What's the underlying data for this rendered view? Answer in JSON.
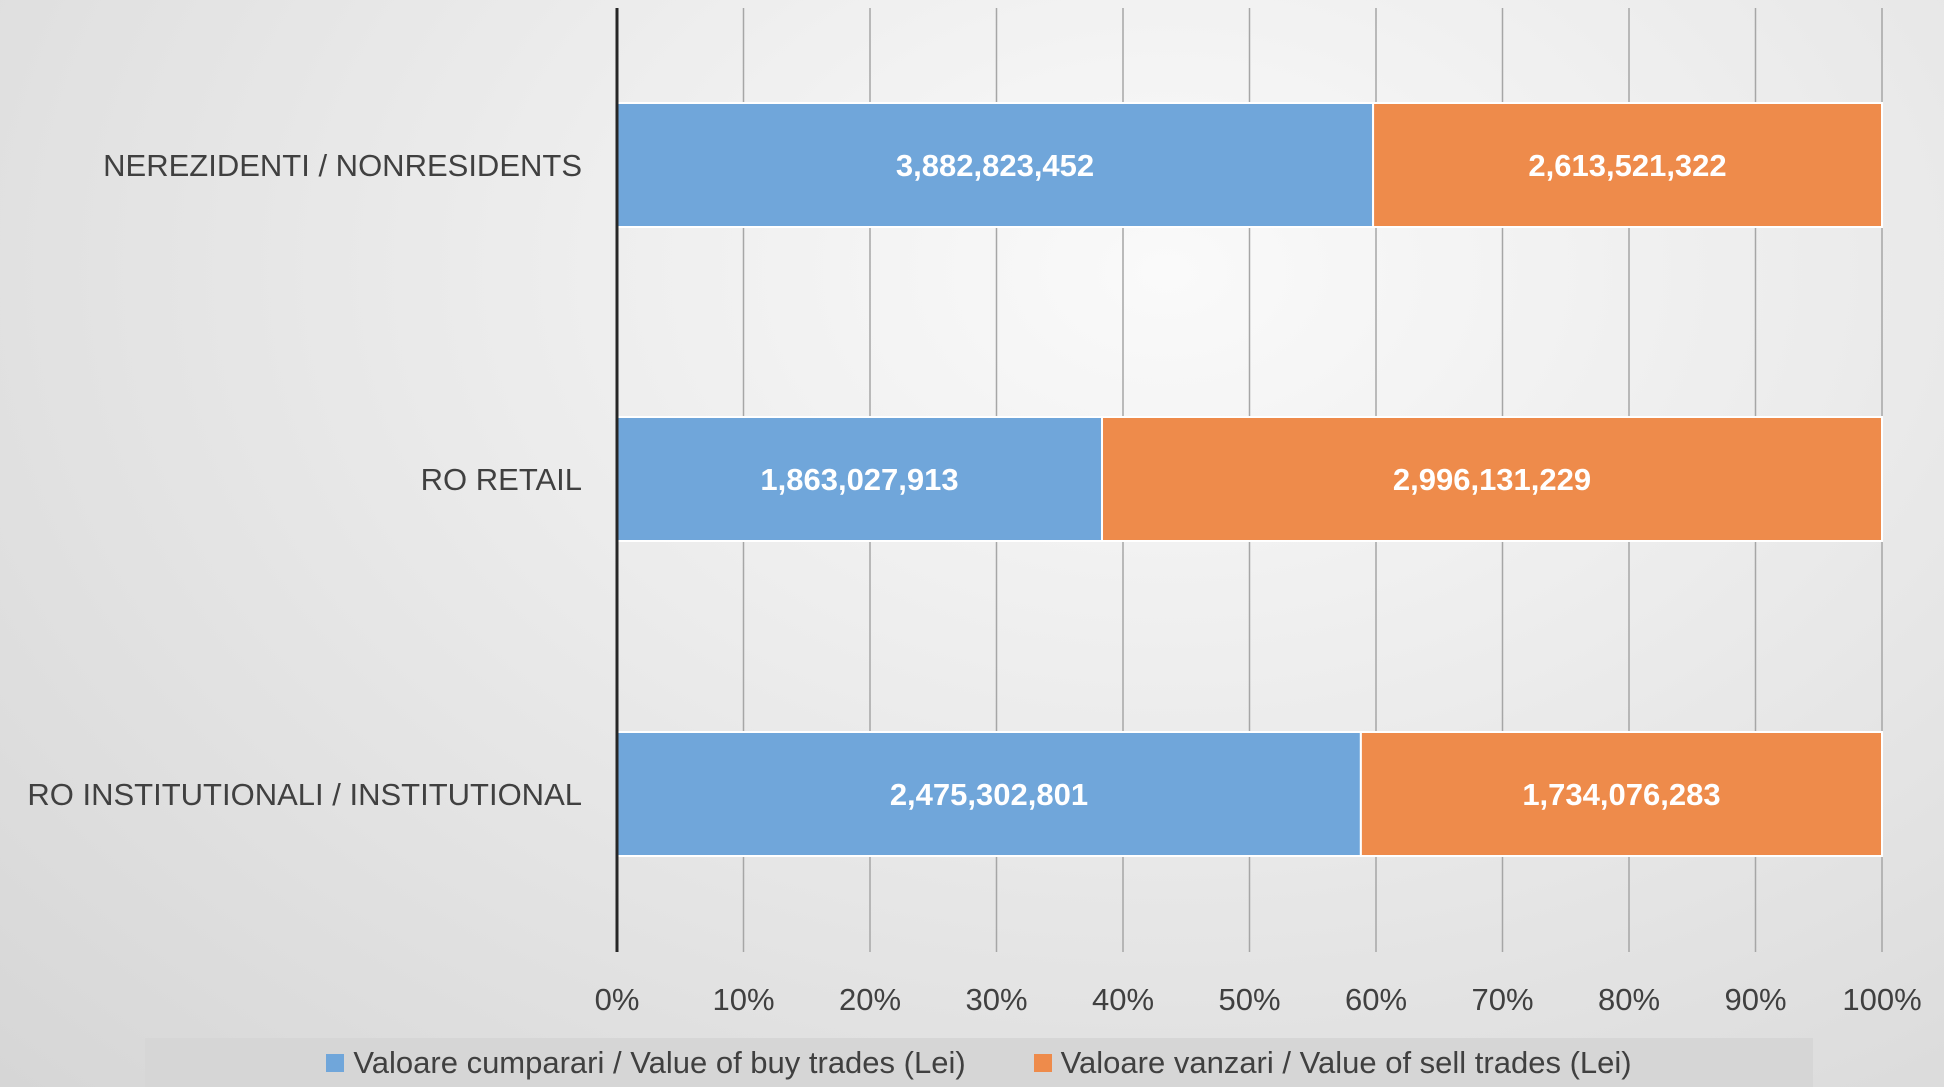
{
  "chart_data": {
    "type": "bar",
    "orientation": "horizontal",
    "stacking": "percent",
    "categories": [
      "NEREZIDENTI / NONRESIDENTS",
      "RO RETAIL",
      "RO INSTITUTIONALI / INSTITUTIONAL"
    ],
    "series": [
      {
        "name": "Valoare cumparari / Value of buy trades (Lei)",
        "color": "#70a6da",
        "values": [
          3882823452,
          1863027913,
          2475302801
        ],
        "labels": [
          "3,882,823,452",
          "1,863,027,913",
          "2,475,302,801"
        ]
      },
      {
        "name": "Valoare vanzari / Value of sell trades (Lei)",
        "color": "#ee8b4b",
        "values": [
          2613521322,
          2996131229,
          1734076283
        ],
        "labels": [
          "2,613,521,322",
          "2,996,131,229",
          "1,734,076,283"
        ]
      }
    ],
    "x_ticks": [
      "0%",
      "10%",
      "20%",
      "30%",
      "40%",
      "50%",
      "60%",
      "70%",
      "80%",
      "90%",
      "100%"
    ],
    "xlim": [
      0,
      100
    ],
    "grid": true,
    "legend_position": "bottom"
  }
}
